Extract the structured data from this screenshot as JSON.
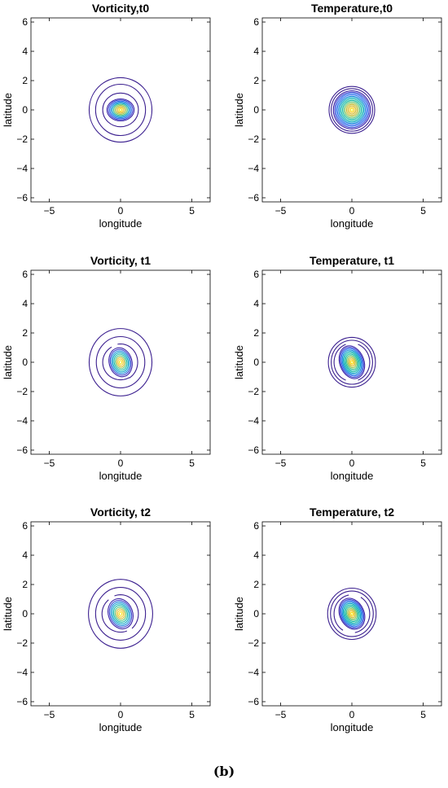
{
  "figure_label": "(b)",
  "chart_data": [
    {
      "type": "contour",
      "title": "Vorticity,t0",
      "xlabel": "longitude",
      "ylabel": "latitude",
      "xlim": [
        -6.28,
        6.28
      ],
      "ylim": [
        -6.28,
        6.28
      ],
      "xticks": [
        -5,
        0,
        5
      ],
      "yticks": [
        -6,
        -4,
        -2,
        0,
        2,
        4,
        6
      ],
      "grid": false,
      "center": [
        0,
        0
      ],
      "outer_rings": [
        {
          "rx": 2.2,
          "ry": 2.2
        },
        {
          "rx": 1.75,
          "ry": 1.75
        },
        {
          "rx": 1.25,
          "ry": 1.15
        }
      ],
      "core": {
        "rx": 0.95,
        "ry": 0.75,
        "levels": 10,
        "tilt_deg": 0
      },
      "inner_arcs": []
    },
    {
      "type": "contour",
      "title": "Temperature,t0",
      "xlabel": "longitude",
      "ylabel": "latitude",
      "xlim": [
        -6.28,
        6.28
      ],
      "ylim": [
        -6.28,
        6.28
      ],
      "xticks": [
        -5,
        0,
        5
      ],
      "yticks": [
        -6,
        -4,
        -2,
        0,
        2,
        4,
        6
      ],
      "grid": false,
      "center": [
        0,
        0
      ],
      "outer_rings": [
        {
          "rx": 1.6,
          "ry": 1.6
        },
        {
          "rx": 1.45,
          "ry": 1.45
        }
      ],
      "core": {
        "rx": 1.3,
        "ry": 1.3,
        "levels": 14,
        "tilt_deg": 0
      },
      "inner_arcs": []
    },
    {
      "type": "contour",
      "title": "Vorticity, t1",
      "xlabel": "longitude",
      "ylabel": "latitude",
      "xlim": [
        -6.28,
        6.28
      ],
      "ylim": [
        -6.28,
        6.28
      ],
      "xticks": [
        -5,
        0,
        5
      ],
      "yticks": [
        -6,
        -4,
        -2,
        0,
        2,
        4,
        6
      ],
      "grid": false,
      "center": [
        0,
        0
      ],
      "outer_rings": [
        {
          "rx": 2.2,
          "ry": 2.3
        },
        {
          "rx": 1.7,
          "ry": 1.75
        }
      ],
      "core": {
        "rx": 0.8,
        "ry": 1.0,
        "levels": 9,
        "tilt_deg": 15
      },
      "inner_arcs": [
        {
          "rx": 1.25,
          "ry": 1.2,
          "start": 120,
          "end": 300
        },
        {
          "rx": 1.2,
          "ry": 1.25,
          "start": 300,
          "end": 460
        }
      ]
    },
    {
      "type": "contour",
      "title": "Temperature, t1",
      "xlabel": "longitude",
      "ylabel": "latitude",
      "xlim": [
        -6.28,
        6.28
      ],
      "ylim": [
        -6.28,
        6.28
      ],
      "xticks": [
        -5,
        0,
        5
      ],
      "yticks": [
        -6,
        -4,
        -2,
        0,
        2,
        4,
        6
      ],
      "grid": false,
      "center": [
        0,
        0
      ],
      "outer_rings": [
        {
          "rx": 1.65,
          "ry": 1.7
        },
        {
          "rx": 1.45,
          "ry": 1.5
        }
      ],
      "core": {
        "rx": 0.85,
        "ry": 1.15,
        "levels": 12,
        "tilt_deg": 20
      },
      "inner_arcs": [
        {
          "rx": 1.25,
          "ry": 1.3,
          "start": 110,
          "end": 250
        },
        {
          "rx": 1.25,
          "ry": 1.3,
          "start": 290,
          "end": 430
        }
      ]
    },
    {
      "type": "contour",
      "title": "Vorticity, t2",
      "xlabel": "longitude",
      "ylabel": "latitude",
      "xlim": [
        -6.28,
        6.28
      ],
      "ylim": [
        -6.28,
        6.28
      ],
      "xticks": [
        -5,
        0,
        5
      ],
      "yticks": [
        -6,
        -4,
        -2,
        0,
        2,
        4,
        6
      ],
      "grid": false,
      "center": [
        0,
        0
      ],
      "outer_rings": [
        {
          "rx": 2.25,
          "ry": 2.35
        },
        {
          "rx": 1.75,
          "ry": 1.8
        }
      ],
      "core": {
        "rx": 0.85,
        "ry": 1.05,
        "levels": 9,
        "tilt_deg": 20
      },
      "inner_arcs": [
        {
          "rx": 1.3,
          "ry": 1.25,
          "start": 130,
          "end": 290
        },
        {
          "rx": 1.25,
          "ry": 1.3,
          "start": 310,
          "end": 470
        }
      ]
    },
    {
      "type": "contour",
      "title": "Temperature, t2",
      "xlabel": "longitude",
      "ylabel": "latitude",
      "xlim": [
        -6.28,
        6.28
      ],
      "ylim": [
        -6.28,
        6.28
      ],
      "xticks": [
        -5,
        0,
        5
      ],
      "yticks": [
        -6,
        -4,
        -2,
        0,
        2,
        4,
        6
      ],
      "grid": false,
      "center": [
        0,
        0
      ],
      "outer_rings": [
        {
          "rx": 1.7,
          "ry": 1.75
        },
        {
          "rx": 1.5,
          "ry": 1.55
        }
      ],
      "core": {
        "rx": 0.85,
        "ry": 1.1,
        "levels": 12,
        "tilt_deg": 25
      },
      "inner_arcs": [
        {
          "rx": 1.25,
          "ry": 1.3,
          "start": 100,
          "end": 240
        },
        {
          "rx": 1.25,
          "ry": 1.3,
          "start": 280,
          "end": 420
        }
      ]
    }
  ],
  "colors": {
    "ring": "#3b1f8f",
    "colormap": [
      "#3e26a8",
      "#4148d0",
      "#2d6bed",
      "#1a8cdb",
      "#0fa8c6",
      "#1ebca9",
      "#5bc682",
      "#9bc65a",
      "#d1bd3c",
      "#f5c834",
      "#f9e51e"
    ],
    "axis": "#000000"
  }
}
